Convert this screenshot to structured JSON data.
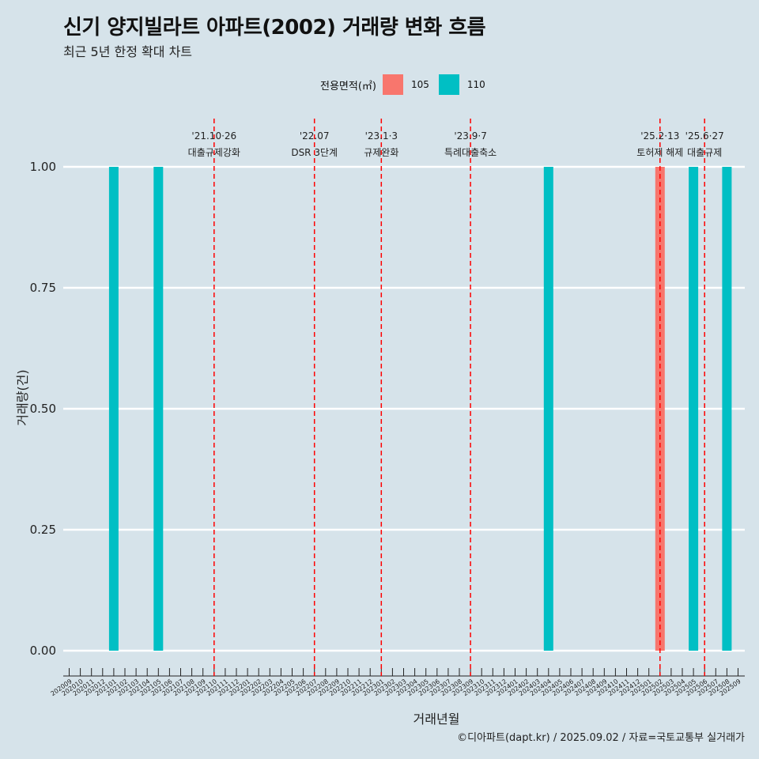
{
  "header": {
    "title": "신기 양지빌라트 아파트(2002) 거래량 변화 흐름",
    "subtitle": "최근 5년 한정 확대 차트"
  },
  "legend": {
    "title": "전용면적(㎡)",
    "items": [
      {
        "label": "105",
        "color": "#f8766d"
      },
      {
        "label": "110",
        "color": "#00bfc4"
      }
    ]
  },
  "caption": "©디아파트(dapt.kr) / 2025.09.02 / 자료=국토교통부 실거래가",
  "chart_data": {
    "type": "bar",
    "xlabel": "거래년월",
    "ylabel": "거래량(건)",
    "ylim": [
      0,
      1
    ],
    "yticks": [
      "0.00",
      "0.25",
      "0.50",
      "0.75",
      "1.00"
    ],
    "grid": true,
    "legend_position": "top",
    "categories": [
      "202009",
      "202010",
      "202011",
      "202012",
      "202101",
      "202102",
      "202103",
      "202104",
      "202105",
      "202106",
      "202107",
      "202108",
      "202109",
      "202110",
      "202111",
      "202112",
      "202201",
      "202202",
      "202203",
      "202204",
      "202205",
      "202206",
      "202207",
      "202208",
      "202209",
      "202210",
      "202211",
      "202212",
      "202301",
      "202302",
      "202303",
      "202304",
      "202305",
      "202306",
      "202307",
      "202308",
      "202309",
      "202310",
      "202311",
      "202312",
      "202401",
      "202402",
      "202403",
      "202404",
      "202405",
      "202406",
      "202407",
      "202408",
      "202409",
      "202410",
      "202411",
      "202412",
      "202501",
      "202502",
      "202503",
      "202504",
      "202505",
      "202506",
      "202507",
      "202508",
      "202509"
    ],
    "series": [
      {
        "name": "105",
        "color": "#f8766d",
        "points": [
          {
            "x": "202502",
            "y": 1
          }
        ]
      },
      {
        "name": "110",
        "color": "#00bfc4",
        "points": [
          {
            "x": "202101",
            "y": 1
          },
          {
            "x": "202105",
            "y": 1
          },
          {
            "x": "202404",
            "y": 1
          },
          {
            "x": "202505",
            "y": 1
          },
          {
            "x": "202508",
            "y": 1
          }
        ]
      }
    ],
    "annotations": [
      {
        "x": "202110",
        "date": "'21.10·26",
        "label": "대출규제강화"
      },
      {
        "x": "202207",
        "date": "'22.07",
        "label": "DSR 3단계"
      },
      {
        "x": "202301",
        "date": "'23.1·3",
        "label": "규제완화"
      },
      {
        "x": "202309",
        "date": "'23.9·7",
        "label": "특례대출축소"
      },
      {
        "x": "202502",
        "date": "'25.2·13",
        "label": "토허제 해제"
      },
      {
        "x": "202506",
        "date": "'25.6·27",
        "label": "대출규제"
      }
    ],
    "annotation_line_color": "#ff0000"
  }
}
